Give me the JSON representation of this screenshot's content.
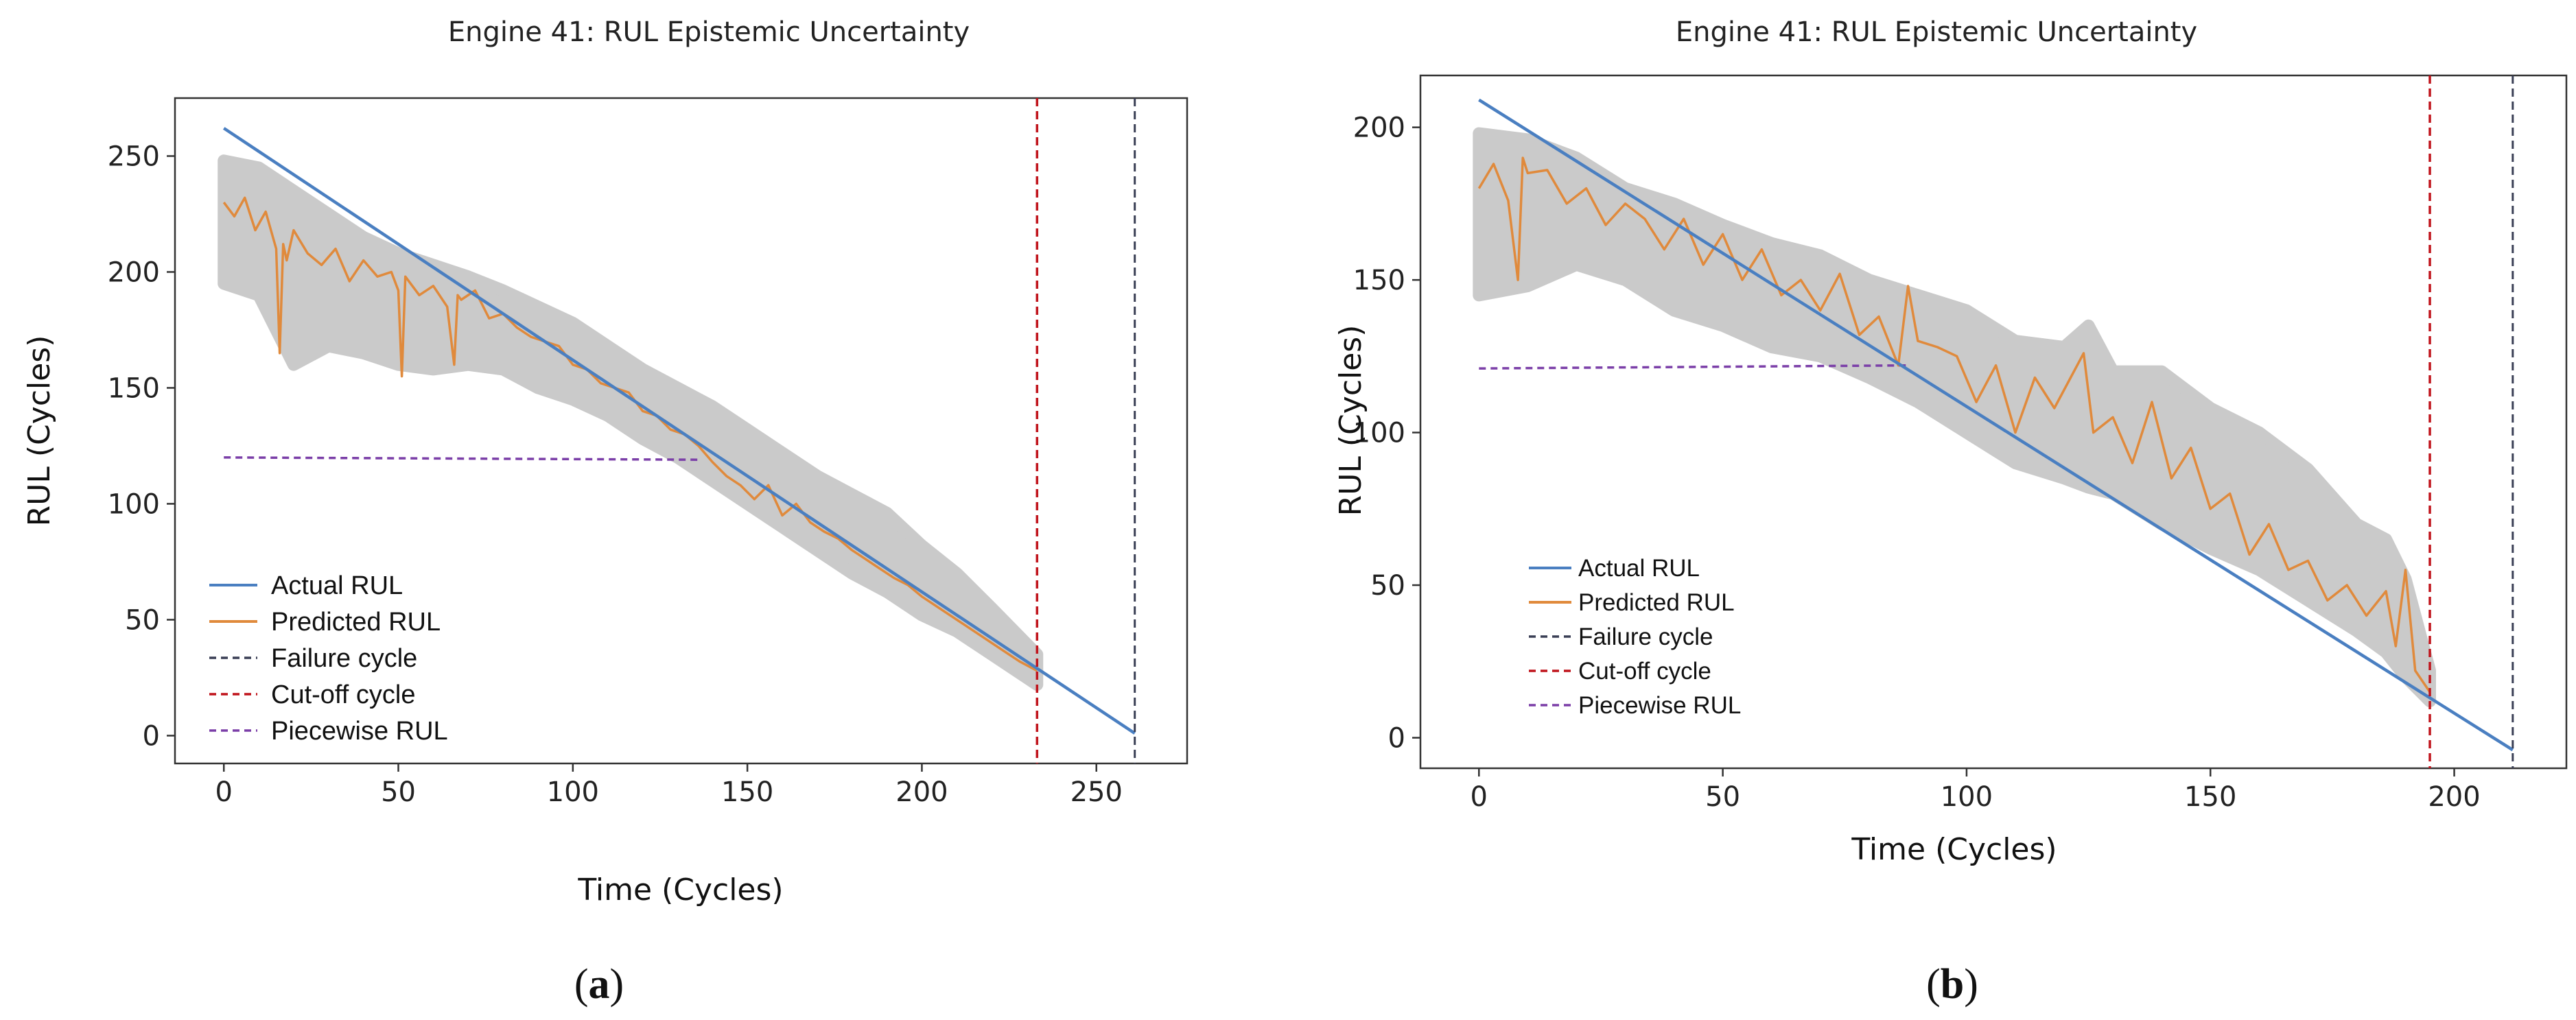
{
  "colors": {
    "actual": "#4a7fc1",
    "predicted": "#e08a3c",
    "failure": "#3a3f55",
    "cutoff": "#c0141c",
    "piecewise": "#7b3fa8",
    "band": "#c8c8c8"
  },
  "chart_data": [
    {
      "type": "line",
      "title": "Engine 41:  RUL Epistemic Uncertainty",
      "xlabel": "Time (Cycles)",
      "ylabel": "RUL (Cycles)",
      "xlim": [
        -14,
        276
      ],
      "ylim": [
        -12,
        275
      ],
      "xticks": [
        0,
        50,
        100,
        150,
        200,
        250
      ],
      "yticks": [
        0,
        50,
        100,
        150,
        200,
        250
      ],
      "grid": false,
      "legend_position": "lower-left",
      "caption_letter": "a",
      "legend": [
        "Actual RUL",
        "Predicted RUL",
        "Failure cycle",
        "Cut-off cycle",
        "Piecewise RUL"
      ],
      "actual_rul": {
        "x": [
          0,
          261
        ],
        "y": [
          262,
          1
        ]
      },
      "failure_cycle": 261,
      "cutoff_cycle": 233,
      "piecewise_rul": {
        "x": [
          0,
          137
        ],
        "y": [
          120,
          119
        ]
      },
      "predicted_rul": {
        "x": [
          0,
          3,
          6,
          9,
          12,
          15,
          16,
          17,
          18,
          20,
          24,
          28,
          32,
          36,
          40,
          44,
          48,
          50,
          51,
          52,
          56,
          60,
          64,
          66,
          67,
          68,
          72,
          76,
          80,
          84,
          88,
          92,
          96,
          100,
          104,
          108,
          112,
          116,
          120,
          124,
          128,
          132,
          136,
          140,
          144,
          148,
          152,
          156,
          160,
          164,
          168,
          172,
          176,
          180,
          184,
          188,
          192,
          196,
          200,
          204,
          208,
          212,
          216,
          220,
          224,
          228,
          233
        ],
        "y": [
          230,
          224,
          232,
          218,
          226,
          210,
          165,
          212,
          205,
          218,
          208,
          203,
          210,
          196,
          205,
          198,
          200,
          192,
          155,
          198,
          190,
          194,
          185,
          160,
          190,
          188,
          192,
          180,
          182,
          176,
          172,
          170,
          168,
          160,
          158,
          152,
          150,
          148,
          140,
          138,
          132,
          130,
          125,
          118,
          112,
          108,
          102,
          108,
          95,
          100,
          92,
          88,
          85,
          80,
          76,
          72,
          68,
          65,
          60,
          56,
          52,
          48,
          44,
          40,
          36,
          32,
          28
        ]
      },
      "band": {
        "x": [
          0,
          10,
          20,
          30,
          40,
          50,
          60,
          70,
          80,
          90,
          100,
          110,
          120,
          130,
          140,
          150,
          160,
          170,
          180,
          190,
          200,
          210,
          220,
          233
        ],
        "upper": [
          248,
          245,
          235,
          225,
          215,
          208,
          203,
          198,
          192,
          185,
          178,
          168,
          158,
          150,
          142,
          132,
          122,
          112,
          104,
          96,
          82,
          70,
          55,
          35
        ],
        "lower": [
          195,
          190,
          160,
          168,
          165,
          160,
          158,
          160,
          158,
          150,
          145,
          138,
          128,
          120,
          110,
          100,
          90,
          80,
          70,
          62,
          52,
          45,
          35,
          22
        ]
      }
    },
    {
      "type": "line",
      "title": "Engine 41:  RUL Epistemic Uncertainty",
      "xlabel": "Time (Cycles)",
      "ylabel": "RUL (Cycles)",
      "xlim": [
        -12,
        223
      ],
      "ylim": [
        -10,
        217
      ],
      "xticks": [
        0,
        50,
        100,
        150,
        200
      ],
      "yticks": [
        0,
        50,
        100,
        150,
        200
      ],
      "grid": false,
      "legend_position": "lower-left",
      "caption_letter": "b",
      "legend": [
        "Actual RUL",
        "Predicted RUL",
        "Failure cycle",
        "Cut-off cycle",
        "Piecewise RUL"
      ],
      "actual_rul": {
        "x": [
          0,
          212
        ],
        "y": [
          209,
          -4
        ]
      },
      "failure_cycle": 212,
      "cutoff_cycle": 195,
      "piecewise_rul": {
        "x": [
          0,
          88
        ],
        "y": [
          121,
          122
        ]
      },
      "predicted_rul": {
        "x": [
          0,
          3,
          6,
          8,
          9,
          10,
          14,
          18,
          22,
          26,
          30,
          34,
          38,
          42,
          46,
          50,
          54,
          58,
          62,
          66,
          70,
          74,
          78,
          82,
          86,
          88,
          90,
          94,
          98,
          102,
          106,
          110,
          114,
          118,
          122,
          124,
          126,
          130,
          134,
          138,
          142,
          146,
          150,
          154,
          158,
          162,
          166,
          170,
          174,
          178,
          182,
          186,
          188,
          190,
          192,
          195
        ],
        "y": [
          180,
          188,
          176,
          150,
          190,
          185,
          186,
          175,
          180,
          168,
          175,
          170,
          160,
          170,
          155,
          165,
          150,
          160,
          145,
          150,
          140,
          152,
          132,
          138,
          122,
          148,
          130,
          128,
          125,
          110,
          122,
          100,
          118,
          108,
          120,
          126,
          100,
          105,
          90,
          110,
          85,
          95,
          75,
          80,
          60,
          70,
          55,
          58,
          45,
          50,
          40,
          48,
          30,
          55,
          22,
          15
        ]
      },
      "band": {
        "x": [
          0,
          10,
          20,
          30,
          40,
          50,
          60,
          70,
          80,
          90,
          100,
          110,
          120,
          125,
          130,
          140,
          150,
          160,
          170,
          180,
          186,
          190,
          195
        ],
        "upper": [
          198,
          196,
          190,
          180,
          175,
          168,
          162,
          158,
          150,
          145,
          140,
          130,
          128,
          135,
          120,
          120,
          108,
          100,
          88,
          70,
          65,
          52,
          22
        ],
        "lower": [
          145,
          148,
          155,
          150,
          140,
          135,
          128,
          125,
          118,
          110,
          100,
          90,
          85,
          82,
          80,
          70,
          62,
          55,
          45,
          35,
          28,
          20,
          12
        ]
      }
    }
  ]
}
